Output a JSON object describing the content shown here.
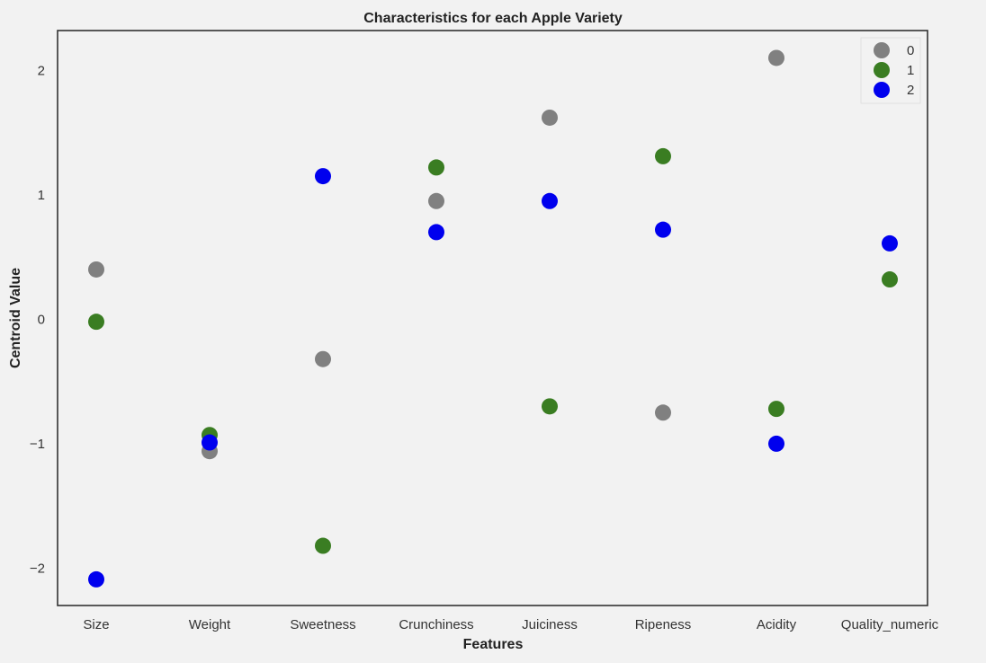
{
  "chart_data": {
    "type": "scatter",
    "title": "Characteristics for each Apple Variety",
    "xlabel": "Features",
    "ylabel": "Centroid Value",
    "categories": [
      "Size",
      "Weight",
      "Sweetness",
      "Crunchiness",
      "Juiciness",
      "Ripeness",
      "Acidity",
      "Quality_numeric"
    ],
    "y_ticks": [
      -2,
      -1,
      0,
      1,
      2
    ],
    "y_tick_labels": [
      "−2",
      "−1",
      "0",
      "1",
      "2"
    ],
    "ylim": [
      -2.3,
      2.32
    ],
    "grid": false,
    "legend_position": "top-right",
    "series": [
      {
        "name": "0",
        "color": "#808080",
        "values": [
          0.4,
          -1.06,
          -0.32,
          0.95,
          1.62,
          -0.75,
          2.1,
          null
        ]
      },
      {
        "name": "1",
        "color": "#3a7d22",
        "values": [
          -0.02,
          -0.93,
          -1.82,
          1.22,
          -0.7,
          1.31,
          -0.72,
          0.32
        ]
      },
      {
        "name": "2",
        "color": "#0000ee",
        "values": [
          -2.09,
          -0.99,
          1.15,
          0.7,
          0.95,
          0.72,
          -1.0,
          0.61
        ]
      }
    ]
  }
}
